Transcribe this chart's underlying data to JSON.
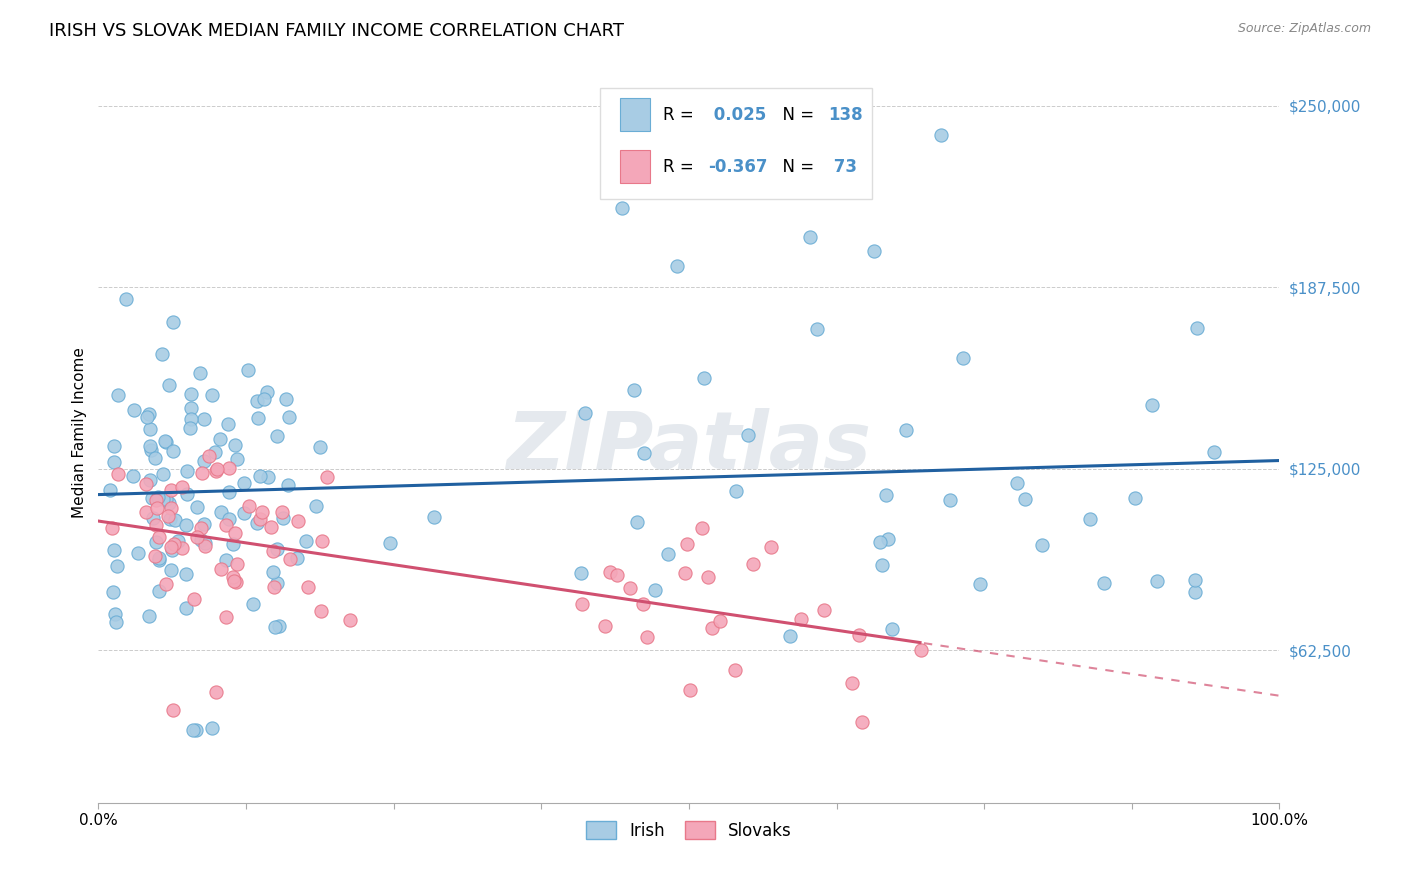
{
  "title": "IRISH VS SLOVAK MEDIAN FAMILY INCOME CORRELATION CHART",
  "source": "Source: ZipAtlas.com",
  "ylabel": "Median Family Income",
  "ytick_labels": [
    "$62,500",
    "$125,000",
    "$187,500",
    "$250,000"
  ],
  "ytick_values": [
    62500,
    125000,
    187500,
    250000
  ],
  "ymin": 10000,
  "ymax": 265000,
  "xmin": 0.0,
  "xmax": 1.0,
  "irish_color": "#a8cce4",
  "irish_edge_color": "#6aadd5",
  "slovak_color": "#f4a7b9",
  "slovak_edge_color": "#e8788a",
  "irish_line_color": "#2060a0",
  "slovak_line_color": "#d05070",
  "irish_R": 0.025,
  "irish_N": 138,
  "slovak_R": -0.367,
  "slovak_N": 73,
  "legend_irish": "Irish",
  "legend_slovak": "Slovaks",
  "watermark": "ZIPatlas",
  "background_color": "#ffffff",
  "grid_color": "#cccccc",
  "title_fontsize": 13,
  "axis_label_fontsize": 11,
  "tick_fontsize": 11,
  "ytick_color": "#4a90c8",
  "xtick_left_label": "0.0%",
  "xtick_right_label": "100.0%"
}
